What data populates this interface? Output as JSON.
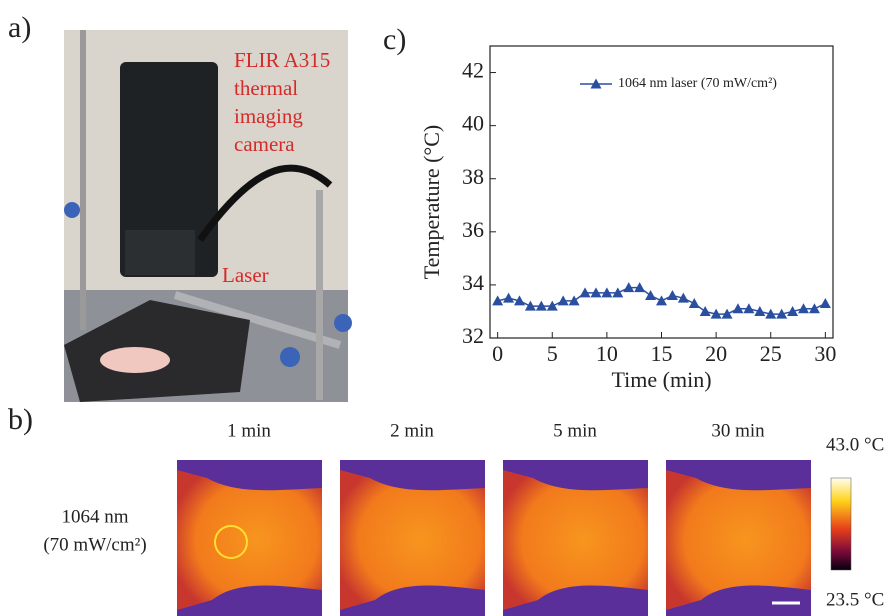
{
  "panels": {
    "a": {
      "label": "a)",
      "camera_note": [
        "FLIR A315",
        "thermal",
        "imaging",
        "camera"
      ],
      "laser_note": "Laser"
    },
    "b": {
      "label": "b)",
      "times": [
        "1 min",
        "2 min",
        "5 min",
        "30 min"
      ],
      "condition": [
        "1064 nm",
        "(70 mW/cm²)"
      ],
      "scale_max": "43.0 °C",
      "scale_min": "23.5 °C"
    },
    "c": {
      "label": "c)"
    }
  },
  "chart_data": {
    "type": "line",
    "xlabel": "Time (min)",
    "ylabel": "Temperature (°C)",
    "x": [
      0,
      1,
      2,
      3,
      4,
      5,
      6,
      7,
      8,
      9,
      10,
      11,
      12,
      13,
      14,
      15,
      16,
      17,
      18,
      19,
      20,
      21,
      22,
      23,
      24,
      25,
      26,
      27,
      28,
      29,
      30
    ],
    "series": [
      {
        "name": "1064 nm laser (70 mW/cm²)",
        "color": "#2b4fa0",
        "values": [
          33.4,
          33.5,
          33.4,
          33.2,
          33.2,
          33.2,
          33.4,
          33.4,
          33.7,
          33.7,
          33.7,
          33.7,
          33.9,
          33.9,
          33.6,
          33.4,
          33.6,
          33.5,
          33.3,
          33.0,
          32.9,
          32.9,
          33.1,
          33.1,
          33.0,
          32.9,
          32.9,
          33.0,
          33.1,
          33.1,
          33.3
        ]
      }
    ],
    "xlim": [
      -0.7,
      30.7
    ],
    "ylim": [
      32,
      43
    ],
    "xticks": [
      0,
      5,
      10,
      15,
      20,
      25,
      30
    ],
    "yticks": [
      32,
      34,
      36,
      38,
      40,
      42
    ],
    "legend": "upper right"
  }
}
